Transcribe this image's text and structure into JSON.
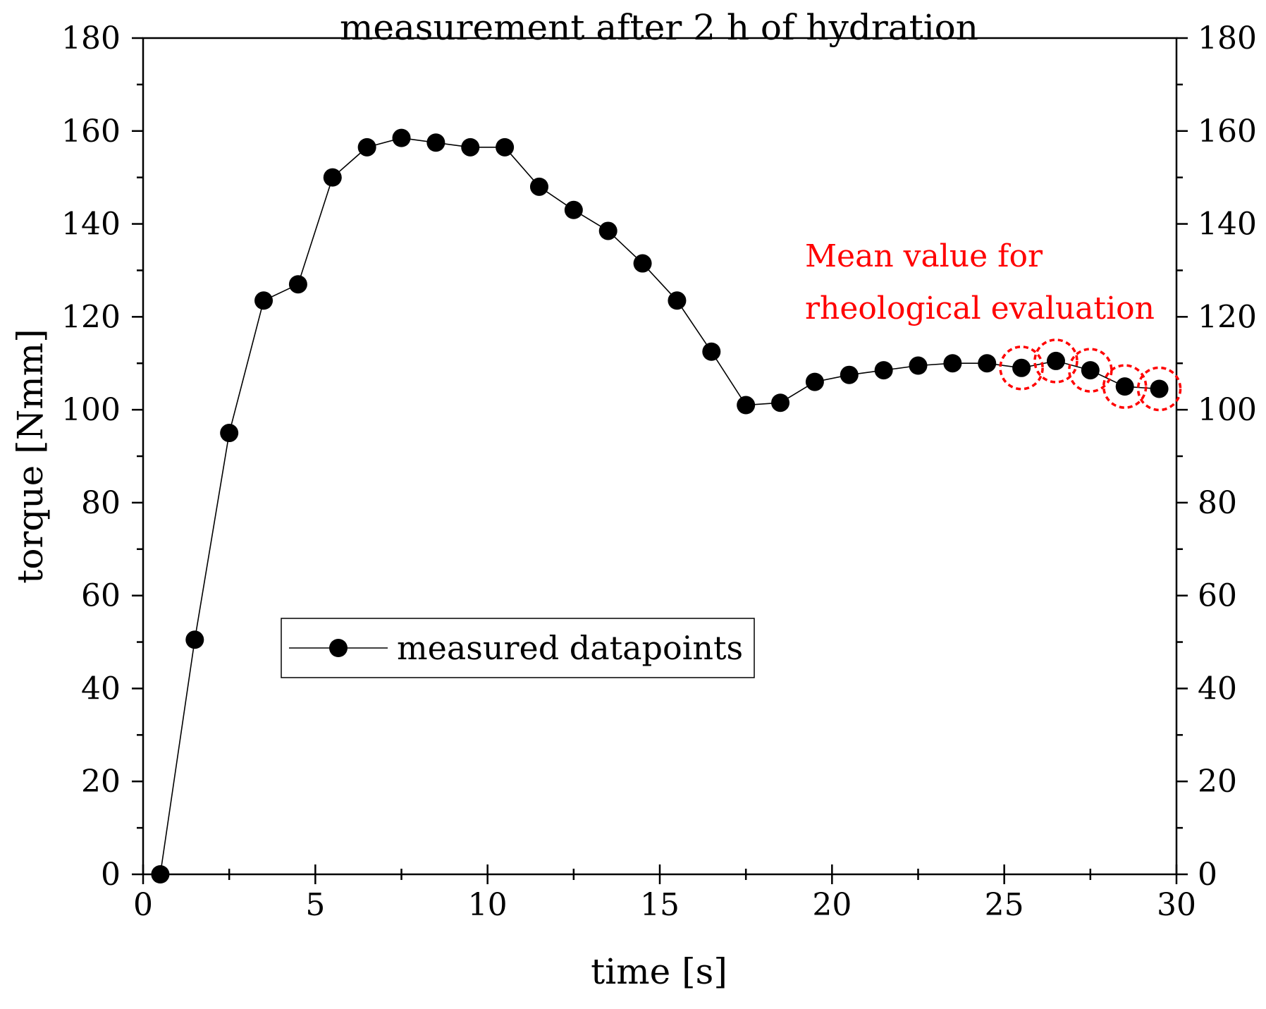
{
  "chart_data": {
    "type": "line",
    "title": "measurement after 2 h of hydration",
    "xlabel": "time [s]",
    "ylabel": "torque [Nmm]",
    "xlim": [
      0,
      30
    ],
    "ylim": [
      0,
      180
    ],
    "x_ticks": [
      "0",
      "5",
      "10",
      "15",
      "20",
      "25",
      "30"
    ],
    "y_ticks": [
      "0",
      "20",
      "40",
      "60",
      "80",
      "100",
      "120",
      "140",
      "160",
      "180"
    ],
    "y_ticks_right": [
      "0",
      "20",
      "40",
      "60",
      "80",
      "100",
      "120",
      "140",
      "160",
      "180"
    ],
    "grid": false,
    "legend_position": "middle-left",
    "series": [
      {
        "name": "measured datapoints",
        "color": "#000000",
        "marker": "circle",
        "x": [
          0.5,
          1.5,
          2.5,
          3.5,
          4.5,
          5.5,
          6.5,
          7.5,
          8.5,
          9.5,
          10.5,
          11.5,
          12.5,
          13.5,
          14.5,
          15.5,
          16.5,
          17.5,
          18.5,
          19.5,
          20.5,
          21.5,
          22.5,
          23.5,
          24.5,
          25.5,
          26.5,
          27.5,
          28.5,
          29.5
        ],
        "y": [
          0,
          50.5,
          95,
          123.5,
          127,
          150,
          156.5,
          158.5,
          157.5,
          156.5,
          156.5,
          148,
          143,
          138.5,
          131.5,
          123.5,
          112.5,
          101,
          101.5,
          106,
          107.5,
          108.5,
          109.5,
          110,
          110,
          109,
          110.5,
          108.5,
          105,
          104.5
        ]
      }
    ],
    "highlighted_x": [
      25.5,
      26.5,
      27.5,
      28.5,
      29.5
    ],
    "highlight_color": "#ff0000",
    "annotation": {
      "lines": [
        "Mean value for",
        "rheological evaluation"
      ],
      "color": "#ff0000"
    }
  }
}
